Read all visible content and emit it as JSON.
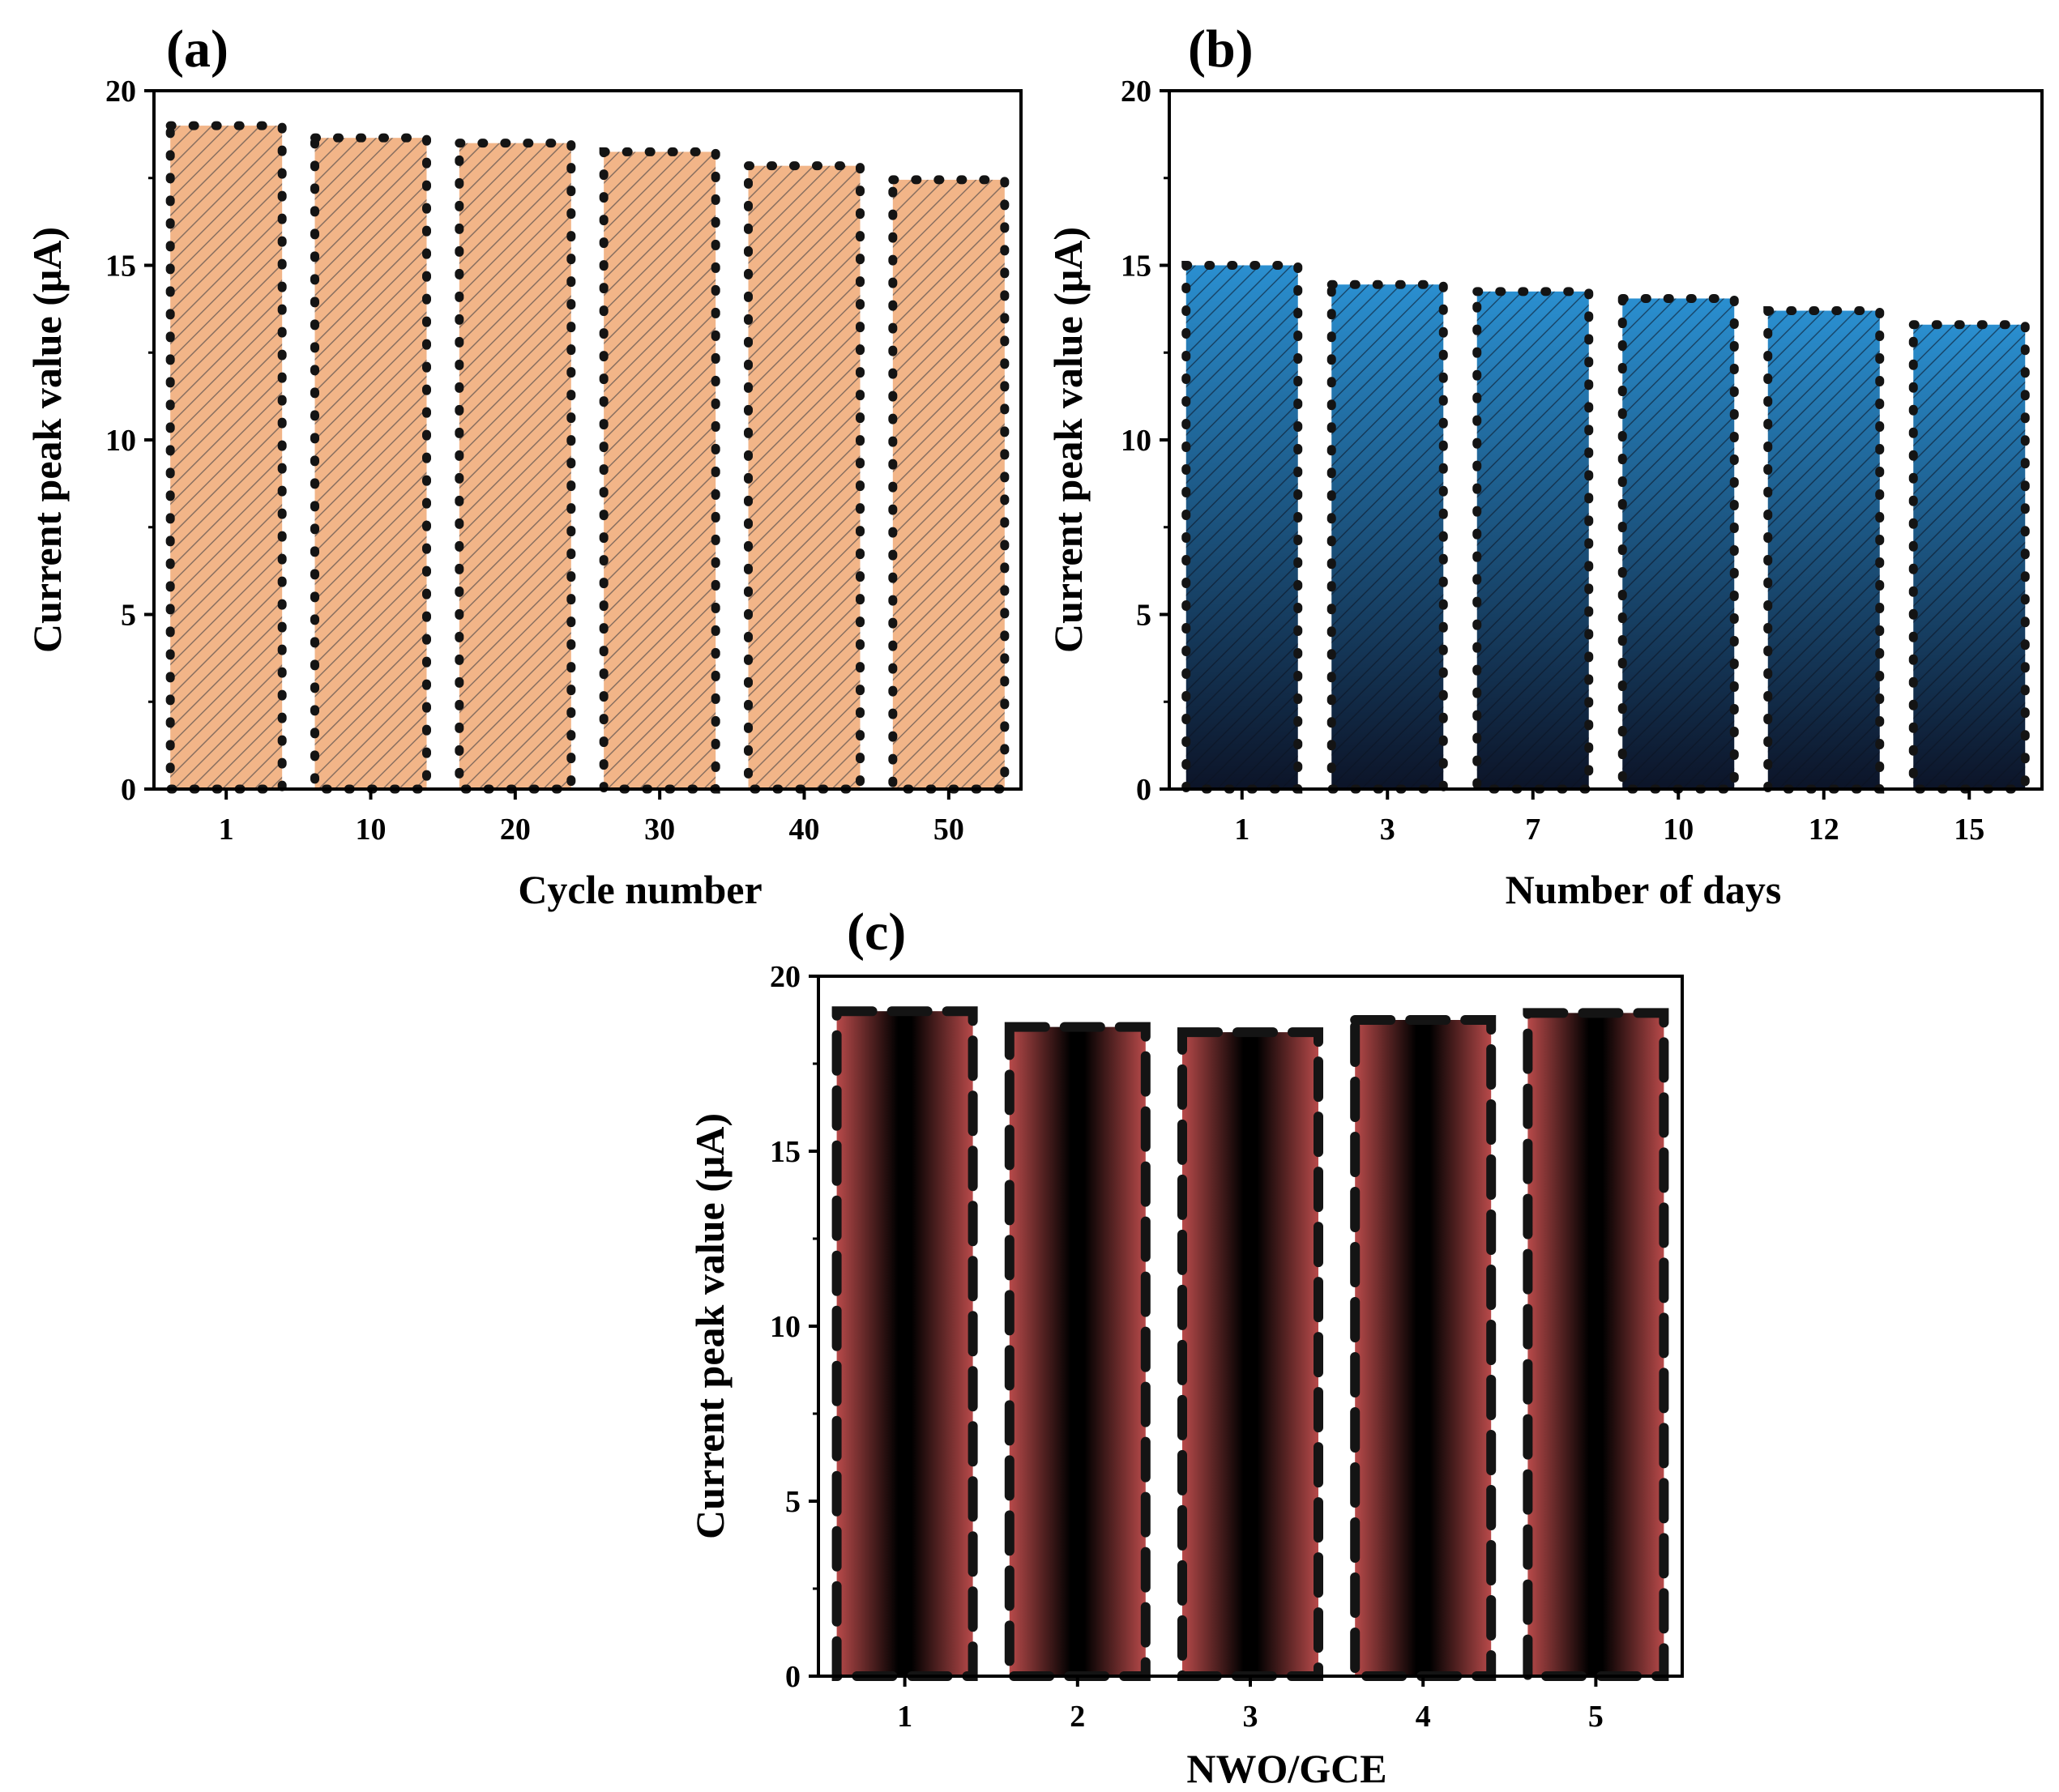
{
  "chart_data": [
    {
      "id": "a",
      "type": "bar",
      "panel_label": "(a)",
      "title": "",
      "xlabel": "Cycle number",
      "ylabel": "Current peak value (μA)",
      "categories": [
        "1",
        "10",
        "20",
        "30",
        "40",
        "50"
      ],
      "values": [
        19.0,
        18.65,
        18.5,
        18.25,
        17.85,
        17.45
      ],
      "ylim": [
        0,
        20
      ],
      "yticks": [
        0,
        5,
        10,
        15,
        20
      ],
      "ytick_labels": [
        "0",
        "5",
        "10",
        "15",
        "20"
      ],
      "grid": false,
      "fill": "hatched",
      "colors": {
        "base": "#f2b588",
        "hatch": "#8a7060",
        "edge": "#111111"
      }
    },
    {
      "id": "b",
      "type": "bar",
      "panel_label": "(b)",
      "title": "",
      "xlabel": "Number of days",
      "ylabel": "Current peak value (μA)",
      "categories": [
        "1",
        "3",
        "7",
        "10",
        "12",
        "15"
      ],
      "values": [
        15.0,
        14.45,
        14.25,
        14.05,
        13.7,
        13.3
      ],
      "ylim": [
        0,
        20
      ],
      "yticks": [
        0,
        5,
        10,
        15,
        20
      ],
      "ytick_labels": [
        "0",
        "5",
        "10",
        "15",
        "20"
      ],
      "grid": false,
      "fill": "gradient-hatched",
      "colors": {
        "top": "#2a8fd0",
        "bottom": "#0c1428",
        "hatch": "#0a1220",
        "edge": "#111111"
      }
    },
    {
      "id": "c",
      "type": "bar",
      "panel_label": "(c)",
      "title": "",
      "xlabel": "NWO/GCE",
      "ylabel": "Current peak value (μA)",
      "categories": [
        "1",
        "2",
        "3",
        "4",
        "5"
      ],
      "values": [
        19.0,
        18.55,
        18.4,
        18.75,
        18.95
      ],
      "ylim": [
        0,
        20
      ],
      "yticks": [
        0,
        5,
        10,
        15,
        20
      ],
      "ytick_labels": [
        "0",
        "5",
        "10",
        "15",
        "20"
      ],
      "grid": false,
      "fill": "horizontal-gradient",
      "colors": {
        "edge_color": "#b84a4a",
        "center": "#000000",
        "outline": "#222222"
      }
    }
  ]
}
